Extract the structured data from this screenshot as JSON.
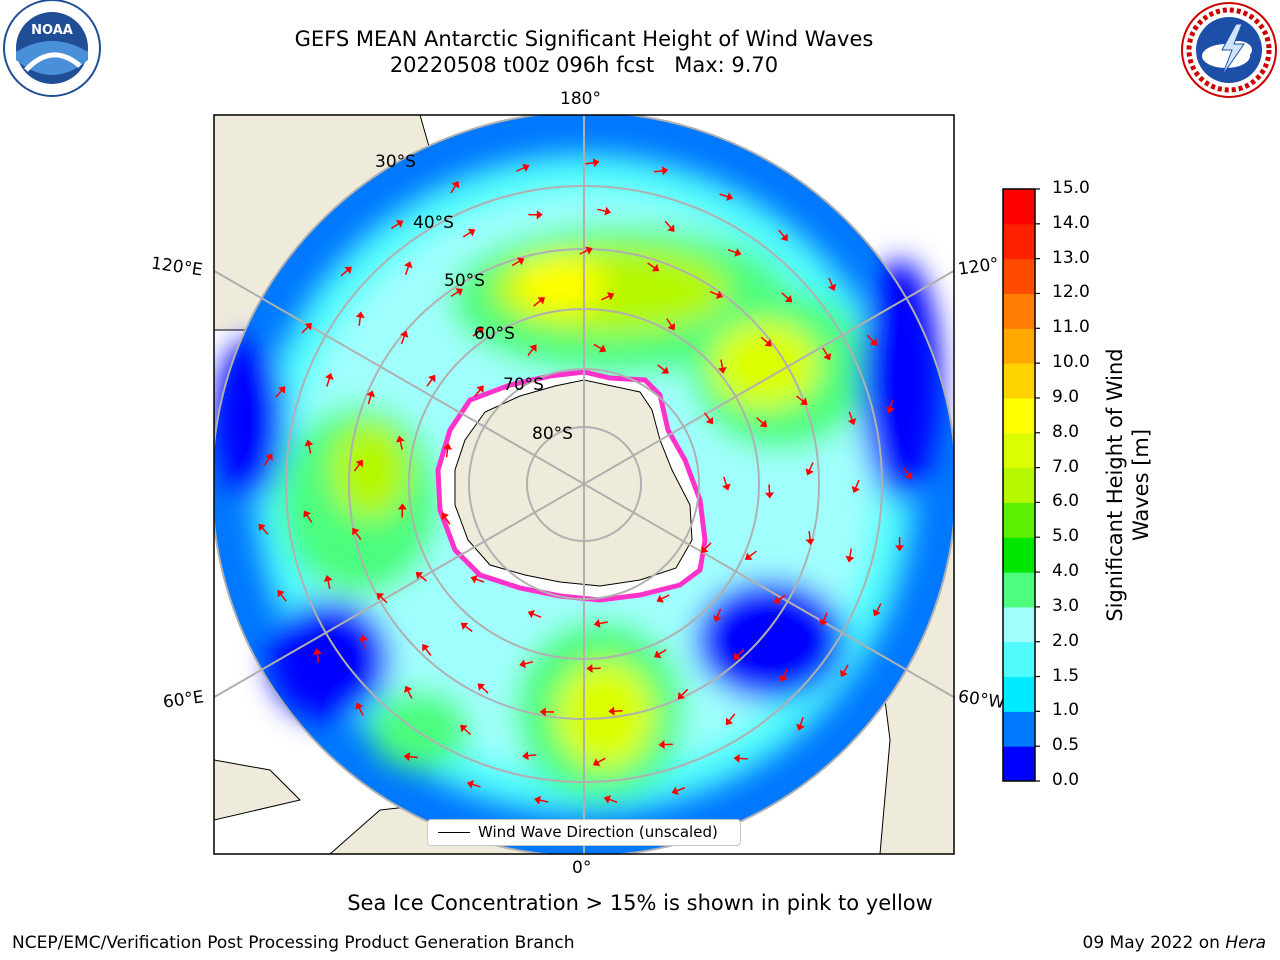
{
  "title_line1": "GEFS MEAN Antarctic Significant Height of Wind Waves",
  "title_line2": "20220508 t00z 096h fcst   Max: 9.70",
  "map": {
    "lon_labels": {
      "top": "180°",
      "bottom": "0°",
      "left_upper": "120°E",
      "left_lower": "60°E",
      "right_upper": "120°",
      "right_lower": "60°W"
    },
    "lat_labels": [
      "30°S",
      "40°S",
      "50°S",
      "60°S",
      "70°S",
      "80°S"
    ],
    "land_color": "#efebdb",
    "ice_edge_color": "#ff33cc",
    "arrow_color": "#ff0000"
  },
  "colorbar": {
    "label": "Significant Height of Wind\nWaves [m]",
    "ticks": [
      "0.0",
      "0.5",
      "1.0",
      "1.5",
      "2.0",
      "3.0",
      "4.0",
      "5.0",
      "6.0",
      "7.0",
      "8.0",
      "9.0",
      "10.0",
      "11.0",
      "12.0",
      "13.0",
      "14.0",
      "15.0"
    ],
    "colors": [
      "#0000ff",
      "#0078ff",
      "#00ebff",
      "#4ffcfb",
      "#a0fffd",
      "#4cfd7e",
      "#00e600",
      "#5cf000",
      "#b5f800",
      "#dbff00",
      "#ffff00",
      "#ffd300",
      "#ffa800",
      "#ff7d00",
      "#ff4b00",
      "#ff2000",
      "#ff0000"
    ]
  },
  "legend": {
    "label": "Wind Wave Direction (unscaled)"
  },
  "subtitle": "Sea Ice Concentration > 15% is shown in pink to yellow",
  "footer": {
    "left": "NCEP/EMC/Verification Post Processing Product Generation Branch",
    "date": "09 May 2022 on ",
    "host": "Hera"
  },
  "logos": {
    "left_text": "NOAA",
    "right_text": "NATIONAL WEATHER SERVICE"
  }
}
